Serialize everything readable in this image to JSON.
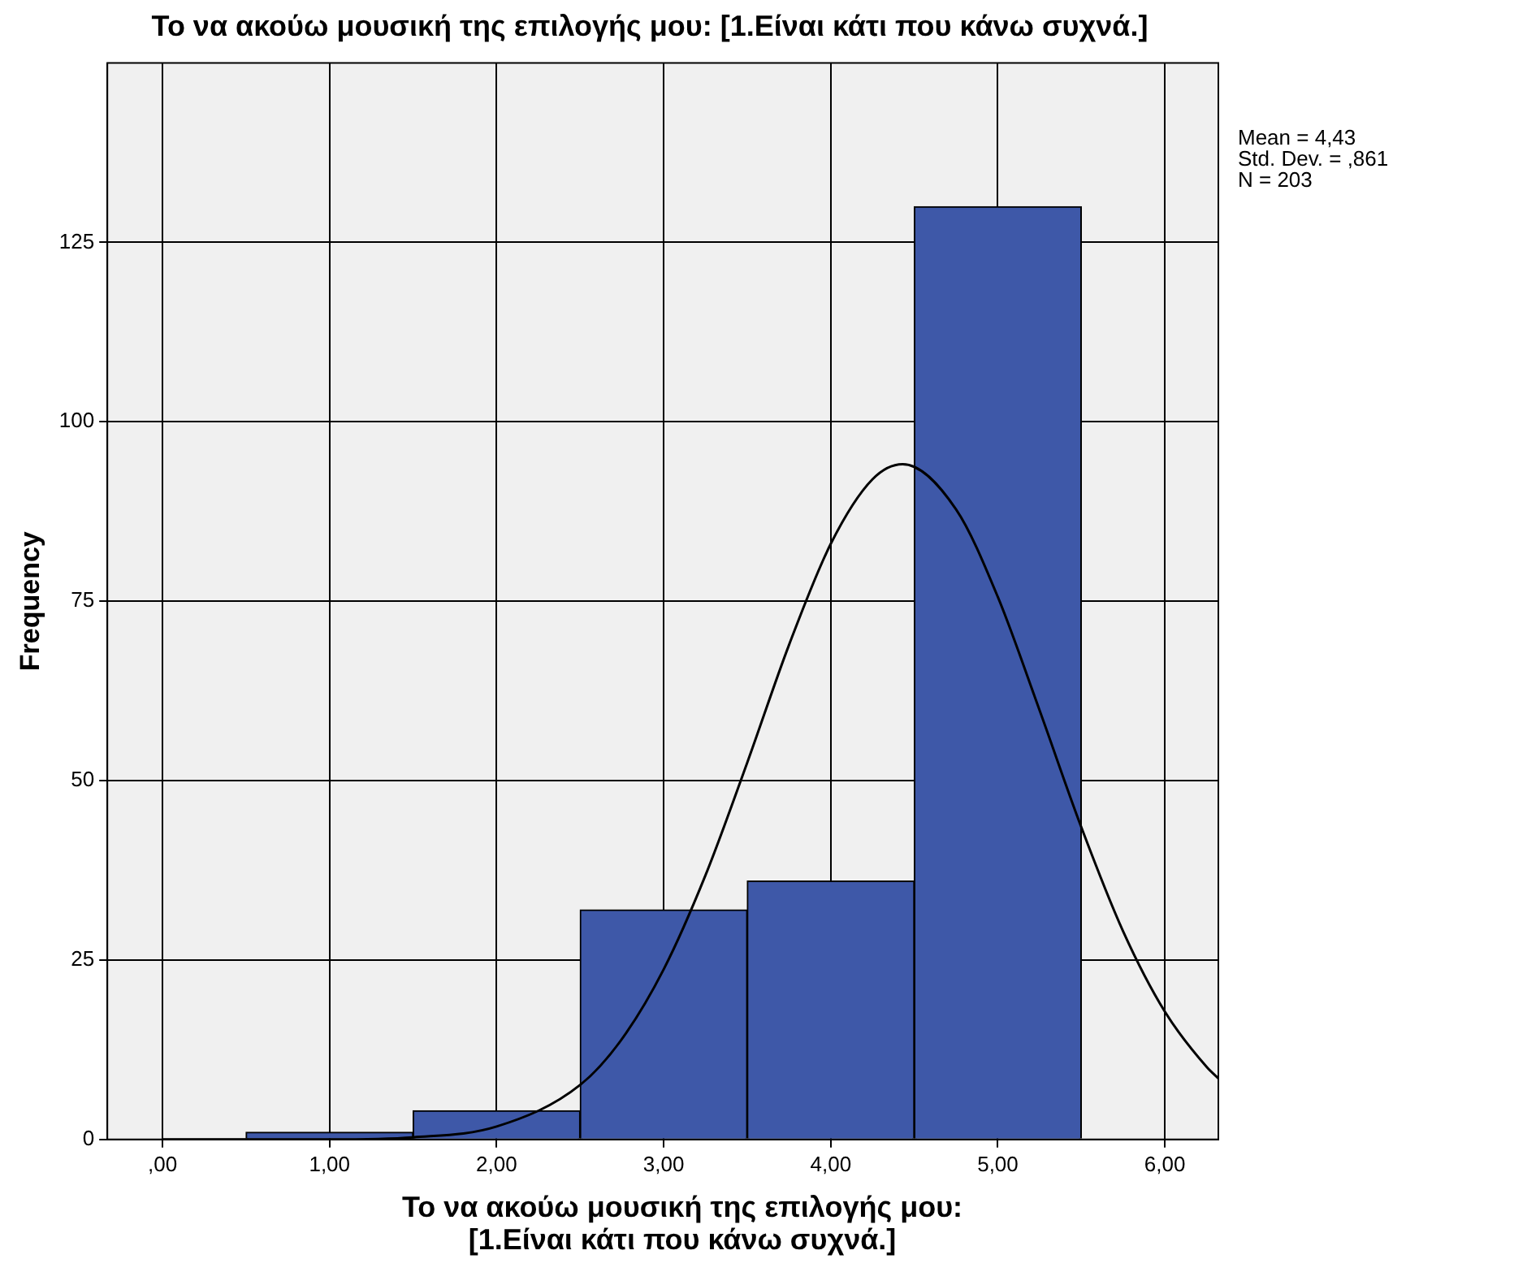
{
  "chart_data": {
    "type": "histogram",
    "title": "Το να ακούω μουσική της επιλογής μου: [1.Είναι κάτι που κάνω συχνά.]",
    "xlabel": "Το να ακούω μουσική της επιλογής μου: [1.Είναι κάτι που κάνω συχνά.]",
    "ylabel": "Frequency",
    "bins": [
      0.5,
      1.5,
      2.5,
      3.5,
      4.5,
      5.5
    ],
    "values": [
      1,
      4,
      32,
      36,
      130
    ],
    "color": "#3e58a8",
    "series": [
      {
        "type": "line",
        "color": "#000000",
        "x": [
          0,
          1,
          1.5,
          2,
          2.5,
          2.75,
          3,
          3.25,
          3.5,
          3.75,
          4,
          4.25,
          4.43,
          4.75,
          5,
          5.25,
          5.5,
          5.75,
          6,
          6.25,
          6.32
        ],
        "values": [
          0,
          0,
          0.3,
          1.8,
          7.6,
          14,
          23.7,
          36.8,
          52.5,
          68.9,
          83,
          92,
          94.1,
          87.8,
          75.6,
          59.8,
          43.5,
          29,
          17.8,
          10.1,
          8.5
        ]
      }
    ],
    "marker": "none",
    "grid": true,
    "xlim": [
      -0.33,
      6.32
    ],
    "ylim": [
      0,
      150
    ],
    "xticks": [
      {
        "value": 0,
        "label": ",00"
      },
      {
        "value": 1,
        "label": "1,00"
      },
      {
        "value": 2,
        "label": "2,00"
      },
      {
        "value": 3,
        "label": "3,00"
      },
      {
        "value": 4,
        "label": "4,00"
      },
      {
        "value": 5,
        "label": "5,00"
      },
      {
        "value": 6,
        "label": "6,00"
      }
    ],
    "yticks": [
      0,
      25,
      50,
      75,
      100,
      125
    ],
    "annotations": [
      "Mean = 4,43",
      "Std. Dev. = ,861",
      "N = 203"
    ]
  }
}
